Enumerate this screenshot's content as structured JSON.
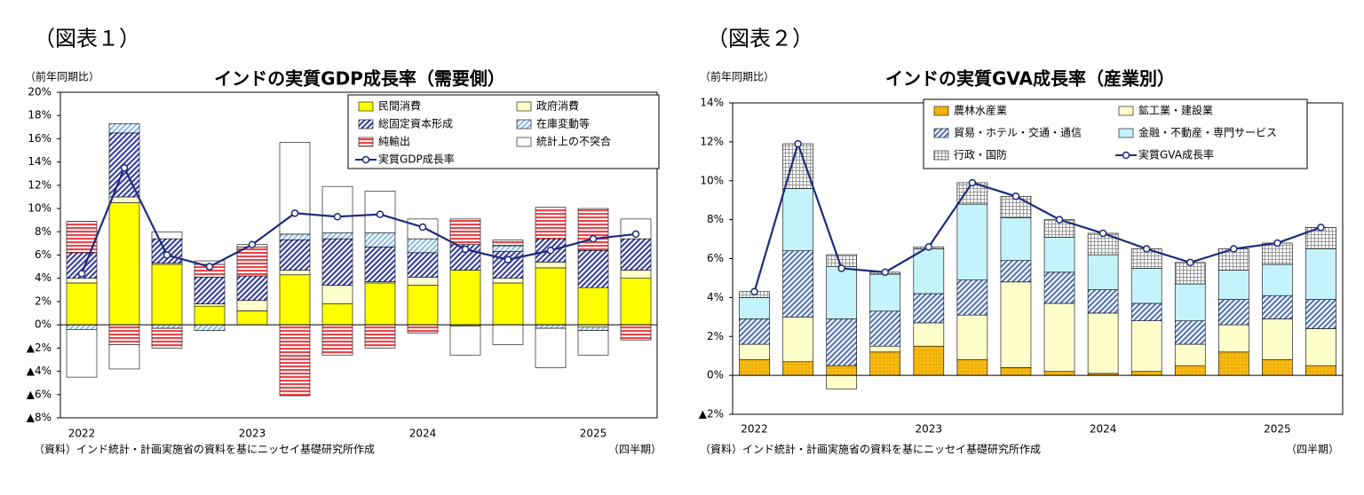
{
  "chart_data": [
    {
      "type": "stacked_bar",
      "figure_label": "（図表１）",
      "title": "インドの実質GDP成長率（需要側）",
      "ylabel": "（前年同期比）",
      "xlabel": "（四半期）",
      "source": "（資料）インド統計・計画実施省の資料を基にニッセイ基礎研究所作成",
      "categories": [
        "2022",
        null,
        null,
        null,
        "2023",
        null,
        null,
        null,
        "2024",
        null,
        null,
        null,
        "2025",
        null
      ],
      "ylim": [
        -8,
        20
      ],
      "yticks": [
        {
          "value": -8,
          "label": "▲8%"
        },
        {
          "value": -6,
          "label": "▲6%"
        },
        {
          "value": -4,
          "label": "▲4%"
        },
        {
          "value": -2,
          "label": "▲2%"
        },
        {
          "value": 0,
          "label": "0%"
        },
        {
          "value": 2,
          "label": "2%"
        },
        {
          "value": 4,
          "label": "4%"
        },
        {
          "value": 6,
          "label": "6%"
        },
        {
          "value": 8,
          "label": "8%"
        },
        {
          "value": 10,
          "label": "10%"
        },
        {
          "value": 12,
          "label": "12%"
        },
        {
          "value": 14,
          "label": "14%"
        },
        {
          "value": 16,
          "label": "16%"
        },
        {
          "value": 18,
          "label": "18%"
        },
        {
          "value": 20,
          "label": "20%"
        }
      ],
      "grid": false,
      "legend": "upper right",
      "series": [
        {
          "name": "民間消費",
          "type": "bar",
          "color": "#ffff00",
          "pattern": "solid",
          "values": [
            3.6,
            10.5,
            5.2,
            1.6,
            1.2,
            4.3,
            1.8,
            3.6,
            3.4,
            4.7,
            3.6,
            4.9,
            3.2,
            4.0
          ]
        },
        {
          "name": "政府消費",
          "type": "bar",
          "color": "#ffffcc",
          "pattern": "solid",
          "values": [
            0.4,
            0.5,
            0.1,
            0.2,
            0.9,
            0.4,
            1.6,
            0.1,
            0.7,
            -0.1,
            0.4,
            0.5,
            -0.2,
            0.7
          ]
        },
        {
          "name": "総固定資本形成",
          "type": "bar",
          "color": "#3a44a6",
          "pattern": "diagonal",
          "values": [
            2.2,
            5.5,
            2.1,
            2.3,
            2.1,
            2.6,
            4.0,
            3.0,
            2.1,
            2.2,
            2.3,
            2.0,
            3.2,
            2.7
          ]
        },
        {
          "name": "在庫変動等",
          "type": "bar",
          "color": "#8fbde6",
          "pattern": "diagonal",
          "values": [
            -0.4,
            0.8,
            -0.3,
            -0.5,
            0,
            0.5,
            0.5,
            1.2,
            1.2,
            0,
            0.5,
            -0.3,
            -0.3,
            0
          ]
        },
        {
          "name": "純輸出",
          "type": "bar",
          "color": "#e8474c",
          "pattern": "horizontal",
          "values": [
            2.7,
            -1.7,
            -1.7,
            1.1,
            2.5,
            -6.1,
            -2.6,
            -2.0,
            -0.7,
            2.2,
            0.5,
            2.7,
            3.6,
            -1.3
          ]
        },
        {
          "name": "統計上の不突合",
          "type": "bar",
          "color": "#ffffff",
          "pattern": "solid",
          "values": [
            -4.1,
            -2.1,
            0.6,
            0.3,
            0.2,
            7.9,
            4.0,
            3.6,
            1.7,
            -2.5,
            -1.7,
            -3.4,
            -2.1,
            1.7
          ]
        },
        {
          "name": "実質GDP成長率",
          "type": "line",
          "color": "#1f2a7a",
          "values": [
            4.4,
            13.5,
            6.0,
            5.0,
            6.9,
            9.6,
            9.3,
            9.5,
            8.4,
            6.5,
            5.6,
            6.4,
            7.4,
            7.8
          ]
        }
      ]
    },
    {
      "type": "stacked_bar",
      "figure_label": "（図表２）",
      "title": "インドの実質GVA成長率（産業別）",
      "ylabel": "（前年同期比）",
      "xlabel": "（四半期）",
      "source": "（資料）インド統計・計画実施省の資料を基にニッセイ基礎研究所作成",
      "categories": [
        "2022",
        null,
        null,
        null,
        "2023",
        null,
        null,
        null,
        "2024",
        null,
        null,
        null,
        "2025",
        null
      ],
      "ylim": [
        -2,
        14
      ],
      "yticks": [
        {
          "value": -2,
          "label": "▲2%"
        },
        {
          "value": 0,
          "label": "0%"
        },
        {
          "value": 2,
          "label": "2%"
        },
        {
          "value": 4,
          "label": "4%"
        },
        {
          "value": 6,
          "label": "6%"
        },
        {
          "value": 8,
          "label": "8%"
        },
        {
          "value": 10,
          "label": "10%"
        },
        {
          "value": 12,
          "label": "12%"
        },
        {
          "value": 14,
          "label": "14%"
        }
      ],
      "grid": false,
      "legend": "upper right",
      "series": [
        {
          "name": "農林水産業",
          "type": "bar",
          "color": "#f2b100",
          "pattern": "dots",
          "values": [
            0.8,
            0.7,
            0.5,
            1.2,
            1.5,
            0.8,
            0.4,
            0.2,
            0.1,
            0.2,
            0.5,
            1.2,
            0.8,
            0.5
          ]
        },
        {
          "name": "鉱工業・建設業",
          "type": "bar",
          "color": "#ffffcc",
          "pattern": "solid",
          "values": [
            0.8,
            2.3,
            -0.7,
            0.3,
            1.2,
            2.3,
            4.4,
            3.5,
            3.1,
            2.6,
            1.1,
            1.4,
            2.1,
            1.9
          ]
        },
        {
          "name": "貿易・ホテル・交通・通信",
          "type": "bar",
          "color": "#5577bb",
          "pattern": "diagonal",
          "values": [
            1.3,
            3.4,
            2.4,
            1.8,
            1.5,
            1.8,
            1.1,
            1.6,
            1.2,
            0.9,
            1.2,
            1.3,
            1.2,
            1.5
          ]
        },
        {
          "name": "金融・不動産・専門サービス",
          "type": "bar",
          "color": "#c5f3fb",
          "pattern": "solid",
          "values": [
            1.1,
            3.2,
            2.7,
            1.9,
            2.3,
            3.9,
            2.2,
            1.8,
            1.8,
            1.8,
            1.9,
            1.5,
            1.6,
            2.6
          ]
        },
        {
          "name": "行政・国防",
          "type": "bar",
          "color": "#9a9a9a",
          "pattern": "grid",
          "values": [
            0.3,
            2.3,
            0.6,
            0.1,
            0.1,
            1.1,
            1.1,
            0.9,
            1.1,
            1.0,
            1.1,
            1.1,
            1.1,
            1.1
          ]
        },
        {
          "name": "実質GVA成長率",
          "type": "line",
          "color": "#1f2a7a",
          "values": [
            4.3,
            11.9,
            5.5,
            5.3,
            6.6,
            9.9,
            9.2,
            8.0,
            7.3,
            6.5,
            5.8,
            6.5,
            6.8,
            7.6
          ]
        }
      ]
    }
  ]
}
